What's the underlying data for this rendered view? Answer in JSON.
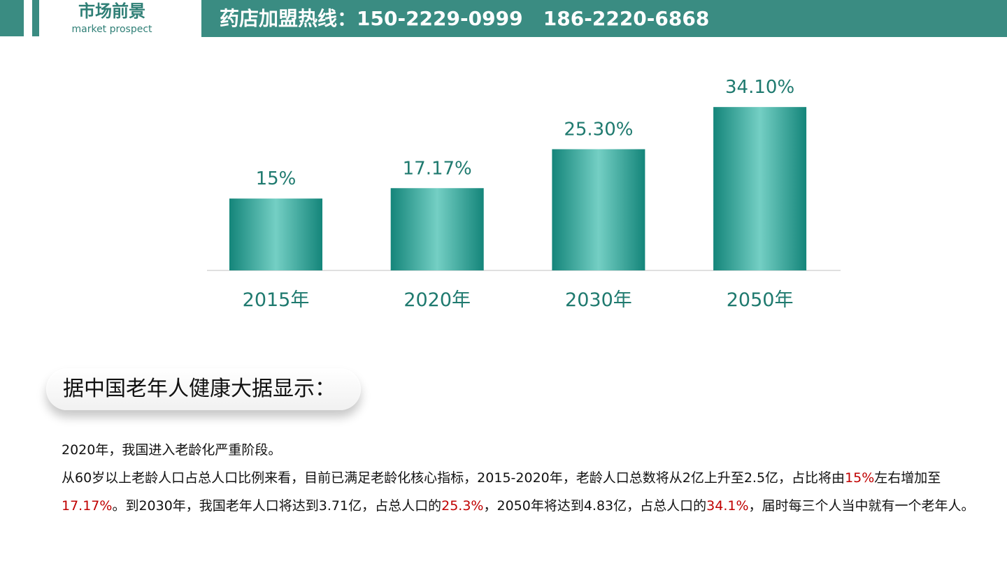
{
  "header": {
    "title_zh": "市场前景",
    "title_en": "market prospect",
    "hotline": "药店加盟热线：150-2229-0999   186-2220-6868"
  },
  "colors": {
    "brand_teal": "#3a8c82",
    "bar_dark": "#14857a",
    "bar_light": "#74cfc4",
    "label_teal": "#1f7a6f",
    "highlight_red": "#c00000"
  },
  "chart_data": {
    "type": "bar",
    "categories": [
      "2015年",
      "2020年",
      "2030年",
      "2050年"
    ],
    "values": [
      15,
      17.17,
      25.3,
      34.1
    ],
    "value_labels": [
      "15%",
      "17.17%",
      "25.30%",
      "34.10%"
    ],
    "ylim": [
      0,
      35
    ],
    "grid": false,
    "legend": "none"
  },
  "section": {
    "pill_title": "据中国老年人健康大据显示："
  },
  "paragraph": {
    "line1": "2020年，我国进入老龄化严重阶段。",
    "p2_a": "从60岁以上老龄人口占总人口比例来看，目前已满足老龄化核心指标，2015-2020年，老龄人口总数将从2亿上升至2.5亿，占比将由",
    "p2_hl1": "15%",
    "p2_b": "左右增加至",
    "p2_hl2": "17.17%",
    "p2_c": "。到2030年，我国老年人口将达到3.71亿，占总人口的",
    "p2_hl3": "25.3%",
    "p2_d": "，2050年将达到4.83亿，占总人口的",
    "p2_hl4": "34.1%",
    "p2_e": "，届时每三个人当中就有一个老年人。"
  }
}
